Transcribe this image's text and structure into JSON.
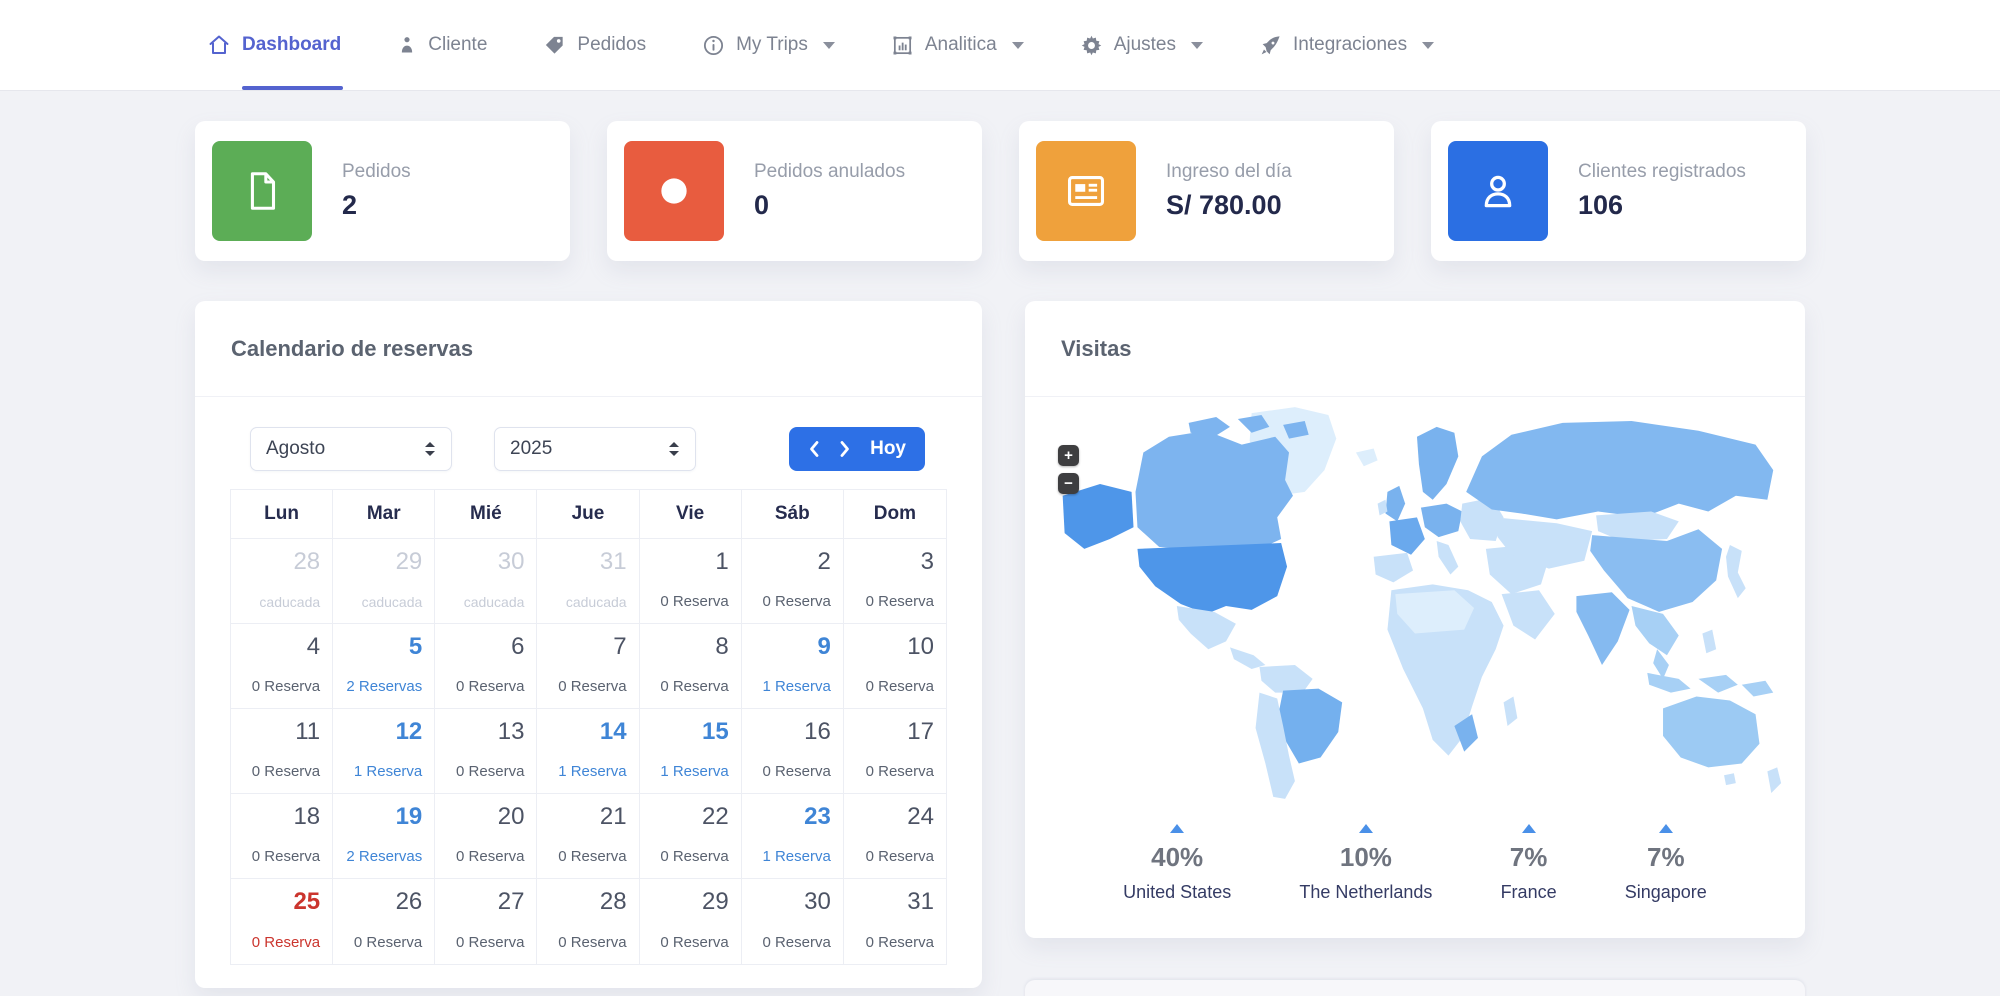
{
  "nav": {
    "items": [
      {
        "label": "Dashboard",
        "icon": "home",
        "active": true,
        "caret": false
      },
      {
        "label": "Cliente",
        "icon": "person",
        "active": false,
        "caret": false
      },
      {
        "label": "Pedidos",
        "icon": "tag",
        "active": false,
        "caret": false
      },
      {
        "label": "My Trips",
        "icon": "info",
        "active": false,
        "caret": true
      },
      {
        "label": "Analitica",
        "icon": "chart",
        "active": false,
        "caret": true
      },
      {
        "label": "Ajustes",
        "icon": "gear",
        "active": false,
        "caret": true
      },
      {
        "label": "Integraciones",
        "icon": "rocket",
        "active": false,
        "caret": true
      }
    ]
  },
  "stats": [
    {
      "label": "Pedidos",
      "value": "2",
      "icon": "document",
      "color": "#5CAD56"
    },
    {
      "label": "Pedidos anulados",
      "value": "0",
      "icon": "circle",
      "color": "#E85C3F"
    },
    {
      "label": "Ingreso del día",
      "value": "S/ 780.00",
      "icon": "newspaper",
      "color": "#EFA13C"
    },
    {
      "label": "Clientes registrados",
      "value": "106",
      "icon": "user",
      "color": "#2B6FE3"
    }
  ],
  "calendar": {
    "title": "Calendario de reservas",
    "month": "Agosto",
    "year": "2025",
    "today_label": "Hoy",
    "weekdays": [
      "Lun",
      "Mar",
      "Mié",
      "Jue",
      "Vie",
      "Sáb",
      "Dom"
    ],
    "cells": [
      {
        "day": "28",
        "sub": "caducada",
        "state": "expired"
      },
      {
        "day": "29",
        "sub": "caducada",
        "state": "expired"
      },
      {
        "day": "30",
        "sub": "caducada",
        "state": "expired"
      },
      {
        "day": "31",
        "sub": "caducada",
        "state": "expired"
      },
      {
        "day": "1",
        "sub": "0 Reserva",
        "state": "normal"
      },
      {
        "day": "2",
        "sub": "0 Reserva",
        "state": "normal"
      },
      {
        "day": "3",
        "sub": "0 Reserva",
        "state": "normal"
      },
      {
        "day": "4",
        "sub": "0 Reserva",
        "state": "normal"
      },
      {
        "day": "5",
        "sub": "2 Reservas",
        "state": "link"
      },
      {
        "day": "6",
        "sub": "0 Reserva",
        "state": "normal"
      },
      {
        "day": "7",
        "sub": "0 Reserva",
        "state": "normal"
      },
      {
        "day": "8",
        "sub": "0 Reserva",
        "state": "normal"
      },
      {
        "day": "9",
        "sub": "1 Reserva",
        "state": "link"
      },
      {
        "day": "10",
        "sub": "0 Reserva",
        "state": "normal"
      },
      {
        "day": "11",
        "sub": "0 Reserva",
        "state": "normal"
      },
      {
        "day": "12",
        "sub": "1 Reserva",
        "state": "link"
      },
      {
        "day": "13",
        "sub": "0 Reserva",
        "state": "normal"
      },
      {
        "day": "14",
        "sub": "1 Reserva",
        "state": "link"
      },
      {
        "day": "15",
        "sub": "1 Reserva",
        "state": "link"
      },
      {
        "day": "16",
        "sub": "0 Reserva",
        "state": "normal"
      },
      {
        "day": "17",
        "sub": "0 Reserva",
        "state": "normal"
      },
      {
        "day": "18",
        "sub": "0 Reserva",
        "state": "normal"
      },
      {
        "day": "19",
        "sub": "2 Reservas",
        "state": "link"
      },
      {
        "day": "20",
        "sub": "0 Reserva",
        "state": "normal"
      },
      {
        "day": "21",
        "sub": "0 Reserva",
        "state": "normal"
      },
      {
        "day": "22",
        "sub": "0 Reserva",
        "state": "normal"
      },
      {
        "day": "23",
        "sub": "1 Reserva",
        "state": "link"
      },
      {
        "day": "24",
        "sub": "0 Reserva",
        "state": "normal"
      },
      {
        "day": "25",
        "sub": "0 Reserva",
        "state": "today"
      },
      {
        "day": "26",
        "sub": "0 Reserva",
        "state": "normal"
      },
      {
        "day": "27",
        "sub": "0 Reserva",
        "state": "normal"
      },
      {
        "day": "28",
        "sub": "0 Reserva",
        "state": "normal"
      },
      {
        "day": "29",
        "sub": "0 Reserva",
        "state": "normal"
      },
      {
        "day": "30",
        "sub": "0 Reserva",
        "state": "normal"
      },
      {
        "day": "31",
        "sub": "0 Reserva",
        "state": "normal"
      }
    ]
  },
  "visits": {
    "title": "Visitas",
    "zoom_in": "+",
    "zoom_out": "−",
    "stats": [
      {
        "pct": "40%",
        "name": "United States"
      },
      {
        "pct": "10%",
        "name": "The Netherlands"
      },
      {
        "pct": "7%",
        "name": "France"
      },
      {
        "pct": "7%",
        "name": "Singapore"
      }
    ],
    "map_colors": {
      "usa": "#4E96E9",
      "canada": "#7DB4EF",
      "russia": "#82B8F0",
      "brazil": "#74B0EE",
      "china": "#8ABDF1",
      "india": "#85BAF0",
      "australia": "#9CCAF3",
      "europe": "#79B2EE",
      "france": "#6AA9ED",
      "base": "#C8E1F9",
      "lightest": "#DDEEFC",
      "medium_light": "#A7D0F5"
    }
  }
}
